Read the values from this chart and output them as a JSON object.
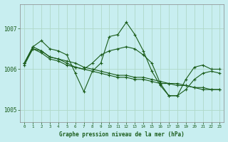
{
  "title": "Graphe pression niveau de la mer (hPa)",
  "background_color": "#c8eef0",
  "grid_color": "#b0d8c8",
  "line_color": "#1a5c1a",
  "xlim": [
    -0.5,
    23.5
  ],
  "ylim": [
    1004.7,
    1007.6
  ],
  "yticks": [
    1005,
    1006,
    1007
  ],
  "xticks": [
    0,
    1,
    2,
    3,
    4,
    5,
    6,
    7,
    8,
    9,
    10,
    11,
    12,
    13,
    14,
    15,
    16,
    17,
    18,
    19,
    20,
    21,
    22,
    23
  ],
  "series": [
    [
      1006.15,
      1006.55,
      1006.7,
      1006.5,
      1006.45,
      1006.35,
      1005.9,
      1005.45,
      1005.95,
      1006.15,
      1006.8,
      1006.85,
      1007.15,
      1006.85,
      1006.45,
      1005.95,
      1005.6,
      1005.35,
      1005.35,
      1005.75,
      1006.05,
      1006.1,
      1006.0,
      1006.0
    ],
    [
      1006.15,
      1006.55,
      1006.45,
      1006.3,
      1006.25,
      1006.2,
      1006.15,
      1006.05,
      1006.0,
      1005.95,
      1005.9,
      1005.85,
      1005.85,
      1005.8,
      1005.8,
      1005.75,
      1005.7,
      1005.65,
      1005.65,
      1005.6,
      1005.55,
      1005.55,
      1005.5,
      1005.5
    ],
    [
      1006.1,
      1006.5,
      1006.4,
      1006.25,
      1006.2,
      1006.1,
      1006.05,
      1006.0,
      1005.95,
      1005.9,
      1005.85,
      1005.8,
      1005.8,
      1005.75,
      1005.75,
      1005.7,
      1005.65,
      1005.65,
      1005.6,
      1005.6,
      1005.55,
      1005.5,
      1005.5,
      1005.5
    ],
    [
      1006.15,
      1006.5,
      1006.45,
      1006.3,
      1006.25,
      1006.15,
      1006.05,
      1006.0,
      1006.15,
      1006.35,
      1006.45,
      1006.5,
      1006.55,
      1006.5,
      1006.35,
      1006.15,
      1005.65,
      1005.35,
      1005.35,
      1005.5,
      1005.75,
      1005.9,
      1005.95,
      1005.9
    ]
  ]
}
